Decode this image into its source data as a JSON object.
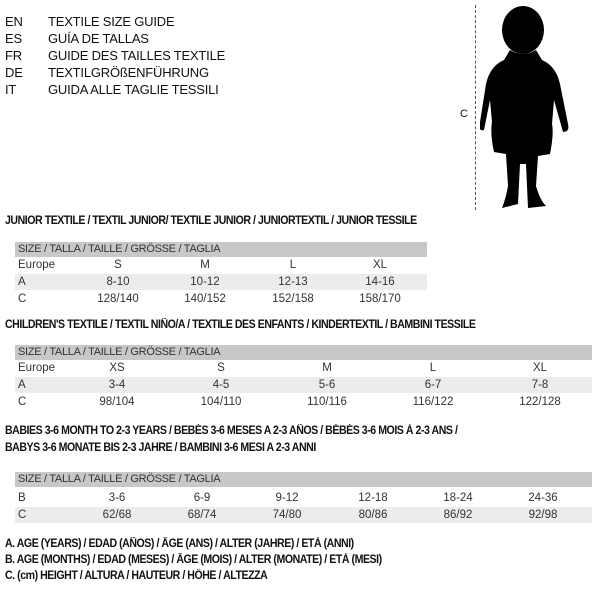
{
  "languages": [
    {
      "code": "EN",
      "label": "TEXTILE SIZE GUIDE"
    },
    {
      "code": "ES",
      "label": "GUÍA DE TALLAS"
    },
    {
      "code": "FR",
      "label": "GUIDE DES TAILLES TEXTILE"
    },
    {
      "code": "DE",
      "label": "TEXTILGRÖßENFÜHRUNG"
    },
    {
      "code": "IT",
      "label": "GUIDA ALLE TAGLIE TESSILI"
    }
  ],
  "figure": {
    "measure_label": "C",
    "icon": "child-silhouette"
  },
  "junior": {
    "title": "JUNIOR TEXTILE / TEXTIL JUNIOR/ TEXTILE JUNIOR / JUNIORTEXTIL / JUNIOR TESSILE",
    "header": "SIZE / TALLA / TAILLE / GRÖSSE / TAGLIA",
    "rows": [
      {
        "label": "Europe",
        "values": [
          "S",
          "M",
          "L",
          "XL"
        ]
      },
      {
        "label": "A",
        "values": [
          "8-10",
          "10-12",
          "12-13",
          "14-16"
        ]
      },
      {
        "label": "C",
        "values": [
          "128/140",
          "140/152",
          "152/158",
          "158/170"
        ]
      }
    ]
  },
  "children": {
    "title": "CHILDREN'S TEXTILE / TEXTIL NIÑO/A / TEXTILE DES ENFANTS / KINDERTEXTIL / BAMBINI TESSILE",
    "header": "SIZE / TALLA / TAILLE / GRÖSSE / TAGLIA",
    "rows": [
      {
        "label": "Europe",
        "values": [
          "XS",
          "S",
          "M",
          "L",
          "XL"
        ]
      },
      {
        "label": "A",
        "values": [
          "3-4",
          "4-5",
          "5-6",
          "6-7",
          "7-8"
        ]
      },
      {
        "label": "C",
        "values": [
          "98/104",
          "104/110",
          "110/116",
          "116/122",
          "122/128"
        ]
      }
    ]
  },
  "babies": {
    "title_line1": "BABIES 3-6 MONTH TO 2-3 YEARS / BEBÉS 3-6 MESES A 2-3 AÑOS / BÉBÉS 3-6 MOIS À 2-3 ANS /",
    "title_line2": "BABYS 3-6 MONATE BIS 2-3 JAHRE / BAMBINI 3-6 MESI A 2-3 ANNI",
    "header": "SIZE / TALLA / TAILLE / GRÖSSE / TAGLIA",
    "rows": [
      {
        "label": "B",
        "values": [
          "3-6",
          "6-9",
          "9-12",
          "12-18",
          "18-24",
          "24-36"
        ]
      },
      {
        "label": "C",
        "values": [
          "62/68",
          "68/74",
          "74/80",
          "80/86",
          "86/92",
          "92/98"
        ]
      }
    ]
  },
  "legend": [
    "A. AGE (YEARS) / EDAD (AÑOS) / ÂGE (ANS) / ALTER (JAHRE) / ETÀ (ANNI)",
    "B. AGE (MONTHS) / EDAD (MESES) / ÂGE (MOIS) / ALTER (MONATE) / ETÀ (MESI)",
    "C. (cm) HEIGHT / ALTURA / HAUTEUR / HÖHE / ALTEZZA"
  ],
  "colors": {
    "header_bg": "#c8c8c8",
    "shaded_row": "#ececec"
  }
}
